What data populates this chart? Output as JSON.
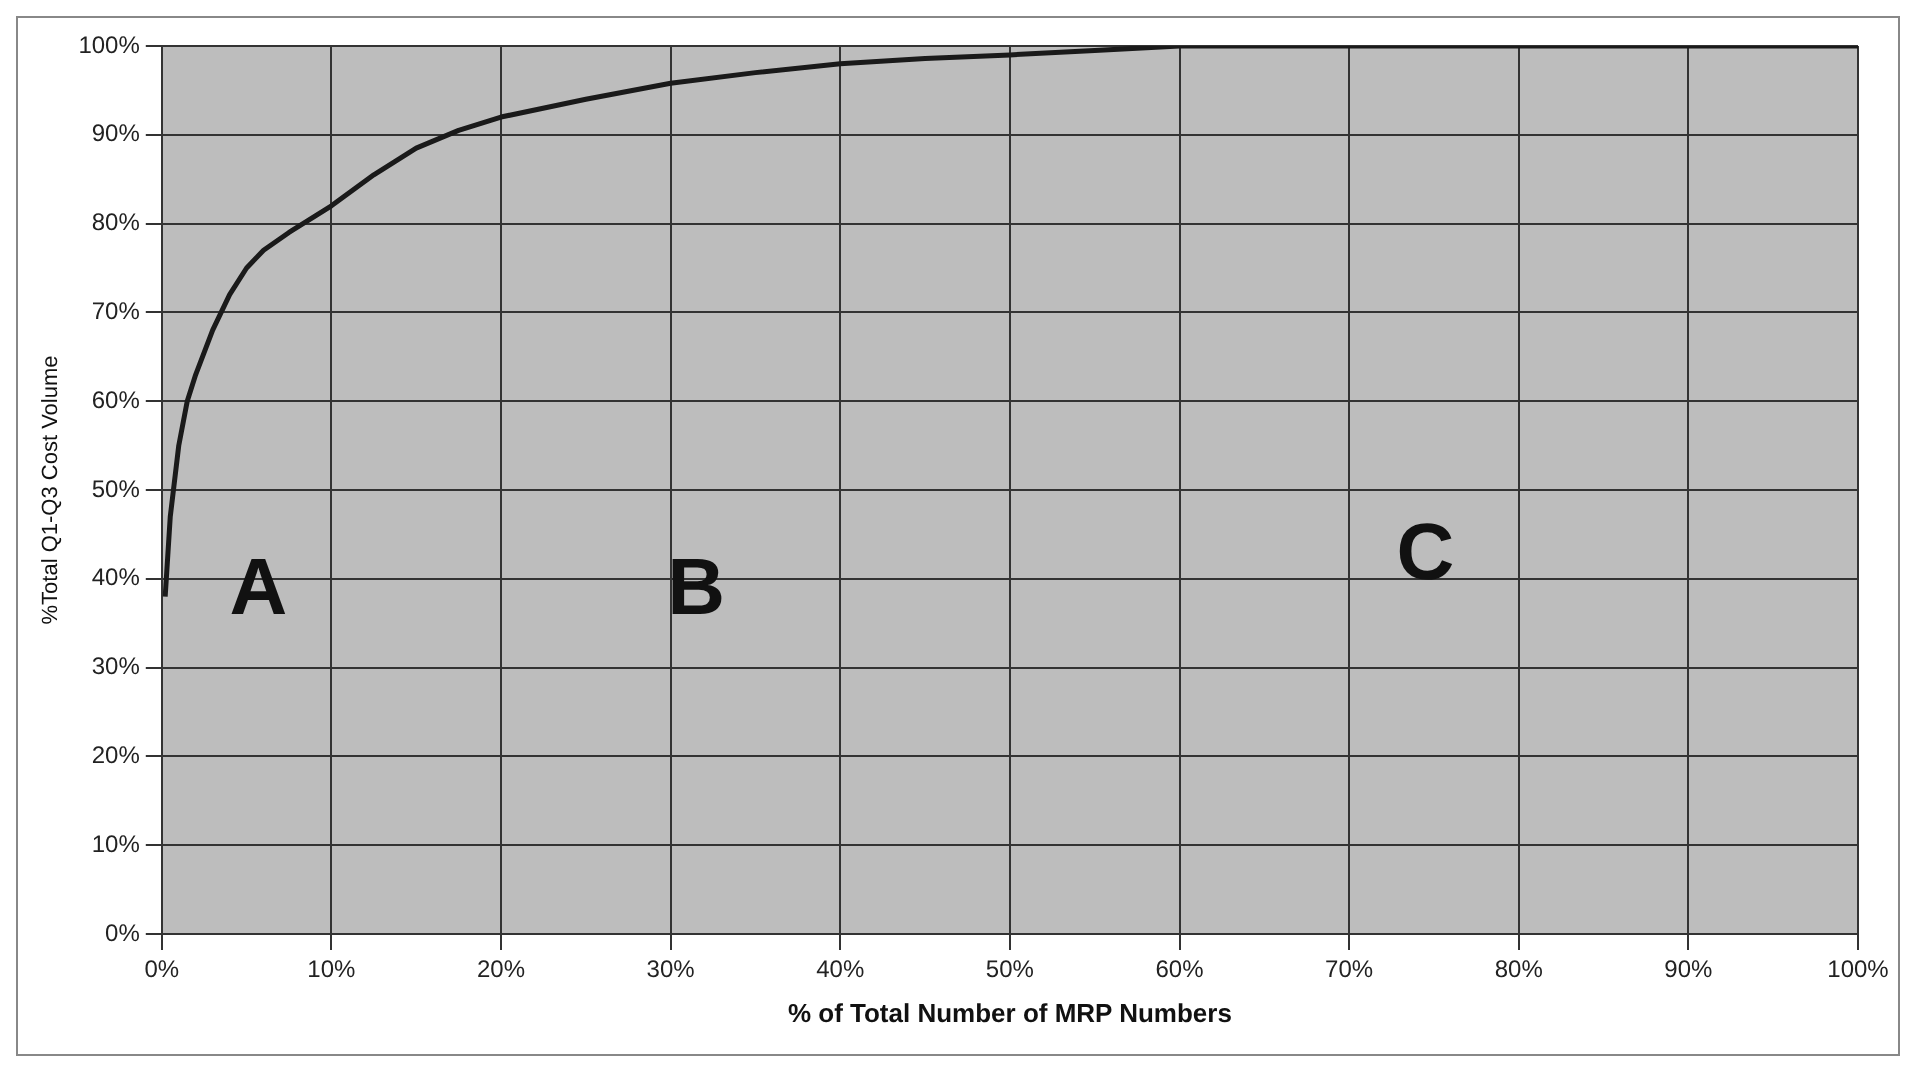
{
  "chart_data": {
    "type": "line",
    "xlabel": "% of Total Number of MRP Numbers",
    "ylabel": "%Total Q1-Q3 Cost Volume",
    "x": [
      0.2,
      0.5,
      1,
      1.5,
      2,
      3,
      4,
      5,
      6,
      7.5,
      10,
      12.5,
      15,
      17.5,
      20,
      25,
      30,
      35,
      40,
      45,
      50,
      55,
      60,
      70,
      80,
      90,
      100
    ],
    "series": [
      {
        "color": "#1a1a1a",
        "values": [
          38,
          47,
          55,
          60,
          63,
          68,
          72,
          75,
          77,
          79,
          82,
          85.5,
          88.5,
          90.5,
          92,
          94,
          95.8,
          97,
          98,
          98.6,
          99,
          99.5,
          100,
          100,
          100,
          100,
          100
        ]
      }
    ],
    "xlim": [
      0,
      100
    ],
    "ylim": [
      0,
      100
    ],
    "xticks": [
      {
        "value": 0,
        "label": "0%"
      },
      {
        "value": 10,
        "label": "10%"
      },
      {
        "value": 20,
        "label": "20%"
      },
      {
        "value": 30,
        "label": "30%"
      },
      {
        "value": 40,
        "label": "40%"
      },
      {
        "value": 50,
        "label": "50%"
      },
      {
        "value": 60,
        "label": "60%"
      },
      {
        "value": 70,
        "label": "70%"
      },
      {
        "value": 80,
        "label": "80%"
      },
      {
        "value": 90,
        "label": "90%"
      },
      {
        "value": 100,
        "label": "100%"
      }
    ],
    "yticks": [
      {
        "value": 0,
        "label": "0%"
      },
      {
        "value": 10,
        "label": "10%"
      },
      {
        "value": 20,
        "label": "20%"
      },
      {
        "value": 30,
        "label": "30%"
      },
      {
        "value": 40,
        "label": "40%"
      },
      {
        "value": 50,
        "label": "50%"
      },
      {
        "value": 60,
        "label": "60%"
      },
      {
        "value": 70,
        "label": "70%"
      },
      {
        "value": 80,
        "label": "80%"
      },
      {
        "value": 90,
        "label": "90%"
      },
      {
        "value": 100,
        "label": "100%"
      }
    ],
    "annotations": [
      "A",
      "B",
      "C"
    ],
    "grid": true,
    "legend": false,
    "marker": "none",
    "line_style": "solid"
  }
}
